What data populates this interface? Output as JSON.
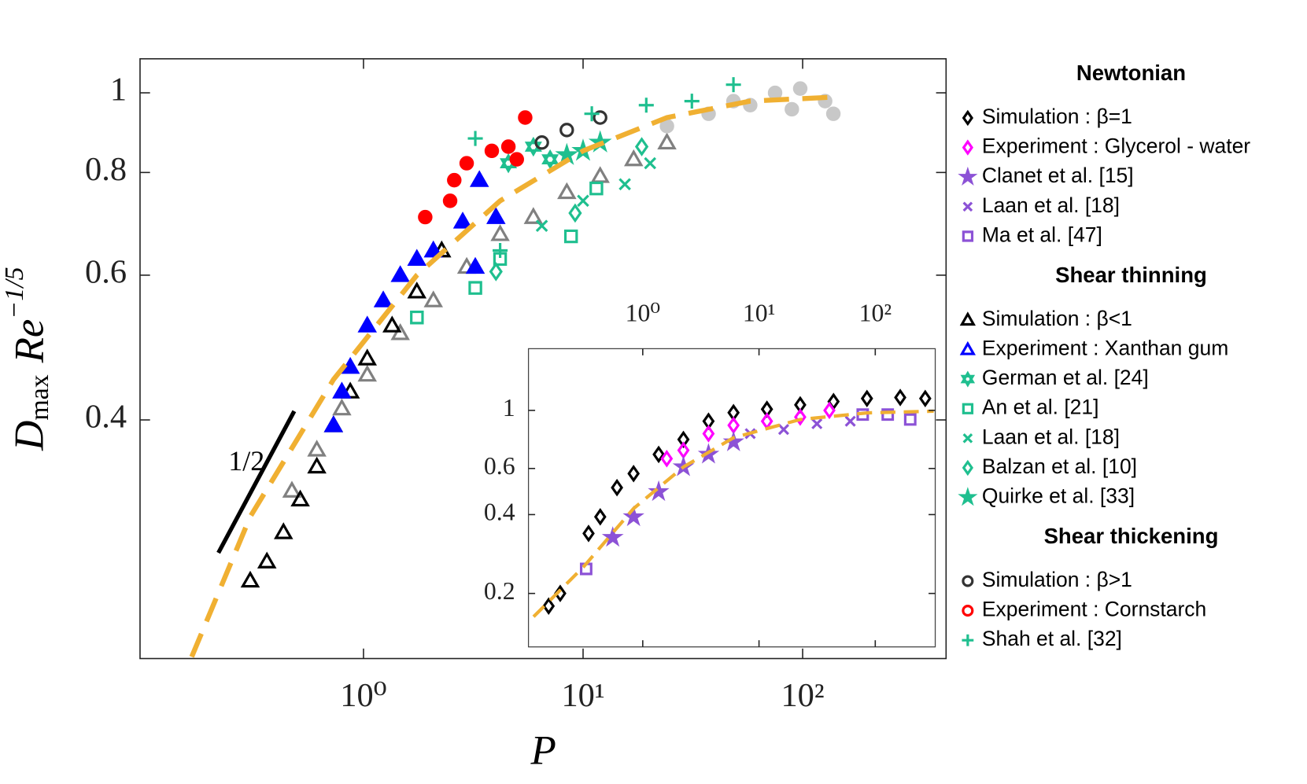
{
  "chart_data": [
    {
      "type": "scatter",
      "xlabel": "P",
      "ylabel": [
        "D",
        "max",
        "Re",
        "−1/5"
      ],
      "annotation": "1/2",
      "log_x": true,
      "log_y": true,
      "xlim": [
        0.096,
        450
      ],
      "ylim": [
        0.205,
        1.1
      ],
      "xticks": [
        {
          "value": 1,
          "label": "10⁰"
        },
        {
          "value": 10,
          "label": "10¹"
        },
        {
          "value": 100,
          "label": "10²"
        }
      ],
      "yticks": [
        1,
        0.8,
        0.6,
        0.4
      ],
      "legend_groups": [
        "Newtonian",
        "Shear thinning",
        "Shear thickening"
      ],
      "series": [
        {
          "color": "#808080",
          "marker": "triangle",
          "x": [
            0.472,
            0.613,
            0.797,
            1.04,
            1.47,
            2.08,
            2.95,
            4.19,
            5.94,
            8.43,
            11.96,
            17.0,
            24.1
          ],
          "values": [
            0.328,
            0.368,
            0.413,
            0.454,
            0.51,
            0.559,
            0.614,
            0.673,
            0.706,
            0.757,
            0.792,
            0.83,
            0.87
          ]
        },
        {
          "color": "#c8c8c8",
          "marker": "circle",
          "filled": true,
          "x": [
            24.1,
            37.3,
            57.7,
            74.9,
            97.5,
            126.6,
            138,
            89.3,
            48.4
          ],
          "values": [
            0.911,
            0.943,
            0.966,
            1.0,
            1.012,
            0.977,
            0.943,
            0.955,
            0.977
          ]
        },
        {
          "name": "Simulation : β<1",
          "group": 1,
          "color": "#000000",
          "marker": "triangle",
          "x": [
            0.305,
            0.363,
            0.432,
            0.515,
            0.613,
            0.73,
            0.87,
            1.04,
            1.35,
            1.75,
            2.27
          ],
          "values": [
            0.255,
            0.269,
            0.292,
            0.32,
            0.351,
            0.394,
            0.433,
            0.475,
            0.521,
            0.573,
            0.643
          ]
        },
        {
          "name": "Experiment : Xanthan gum",
          "group": 1,
          "color": "#0000ff",
          "marker": "triangle",
          "filled": true,
          "x": [
            0.73,
            0.797,
            0.87,
            1.04,
            1.23,
            1.47,
            1.75,
            2.08,
            2.83,
            3.37,
            4.01,
            3.23
          ],
          "values": [
            0.394,
            0.433,
            0.464,
            0.521,
            0.559,
            0.6,
            0.628,
            0.643,
            0.697,
            0.783,
            0.706,
            0.614
          ]
        },
        {
          "name": "German et al. [24]",
          "group": 1,
          "color": "#1fbf8f",
          "marker": "hexagram",
          "x": [
            4.57,
            5.94,
            7.08
          ],
          "values": [
            0.821,
            0.86,
            0.83
          ]
        },
        {
          "name": "An et al. [21]",
          "group": 1,
          "color": "#1fbf8f",
          "marker": "square",
          "x": [
            1.75,
            3.23,
            8.81,
            11.5,
            4.19
          ],
          "values": [
            0.533,
            0.579,
            0.669,
            0.765,
            0.628
          ]
        },
        {
          "name": "Laan et al. [18]",
          "group": 1,
          "color": "#1fbf8f",
          "marker": "x",
          "x": [
            6.49,
            10.0,
            15.5,
            20.2
          ],
          "values": [
            0.689,
            0.739,
            0.774,
            0.821
          ]
        },
        {
          "name": "Balzan et al. [10]",
          "group": 1,
          "color": "#1fbf8f",
          "marker": "diamond",
          "x": [
            4.01,
            9.2,
            18.5
          ],
          "values": [
            0.606,
            0.714,
            0.86
          ]
        },
        {
          "name": "Quirke et al. [33]",
          "group": 1,
          "color": "#1fbf8f",
          "marker": "star",
          "x": [
            8.43,
            10.0,
            11.96
          ],
          "values": [
            0.84,
            0.85,
            0.87
          ]
        },
        {
          "name": "Simulation : β>1",
          "group": 2,
          "color": "#333333",
          "marker": "circle",
          "x": [
            6.49,
            8.43,
            11.96
          ],
          "values": [
            0.87,
            0.901,
            0.933
          ]
        },
        {
          "name": "Experiment : Cornstarch",
          "group": 2,
          "color": "#ff0000",
          "marker": "circle",
          "filled": true,
          "x": [
            1.91,
            2.48,
            2.59,
            2.95,
            3.84,
            4.57,
            5.45,
            4.99
          ],
          "values": [
            0.706,
            0.739,
            0.783,
            0.821,
            0.85,
            0.86,
            0.933,
            0.83
          ]
        },
        {
          "name": "Shah et al. [32]",
          "group": 2,
          "color": "#1fbf8f",
          "marker": "plus",
          "x": [
            3.23,
            10.96,
            19.4,
            31.3,
            48.4,
            4.19
          ],
          "values": [
            0.88,
            0.943,
            0.966,
            0.977,
            1.023,
            0.643
          ]
        },
        {
          "color": "#f0b032",
          "marker": "line",
          "x": [
            0.165,
            0.305,
            0.73,
            1.75,
            4.19,
            10.0,
            24.1,
            57.7,
            138
          ],
          "values": [
            0.206,
            0.305,
            0.448,
            0.6,
            0.739,
            0.85,
            0.933,
            0.977,
            0.988
          ]
        }
      ]
    },
    {
      "type": "scatter",
      "log_x": true,
      "log_y": true,
      "xlim": [
        0.104,
        328
      ],
      "ylim": [
        0.125,
        1.72
      ],
      "xticks": [
        {
          "value": 1,
          "label": "10⁰"
        },
        {
          "value": 10,
          "label": "10¹"
        },
        {
          "value": 100,
          "label": "10²"
        }
      ],
      "yticks": [
        1,
        0.6,
        0.4,
        0.2
      ],
      "series": [
        {
          "name": "Simulation : β=1",
          "group": 0,
          "color": "#000000",
          "marker": "diamond",
          "x": [
            0.155,
            0.195,
            0.342,
            0.431,
            0.6,
            0.834,
            1.37,
            2.24,
            3.68,
            6.04,
            11.7,
            22.6,
            43.8,
            84.8,
            164,
            269
          ],
          "values": [
            0.179,
            0.2,
            0.339,
            0.392,
            0.507,
            0.574,
            0.679,
            0.774,
            0.909,
            0.98,
            1.01,
            1.05,
            1.08,
            1.11,
            1.12,
            1.11
          ]
        },
        {
          "name": "Experiment : Glycerol - water",
          "group": 0,
          "color": "#ff00ff",
          "marker": "diamond",
          "x": [
            1.61,
            2.24,
            3.68,
            6.04,
            11.7,
            22.6,
            40.3
          ],
          "values": [
            0.654,
            0.704,
            0.815,
            0.877,
            0.909,
            0.943,
            1.0
          ]
        },
        {
          "name": "Clanet et al. [15]",
          "group": 0,
          "color": "#8c52d6",
          "marker": "star",
          "x": [
            0.552,
            0.834,
            1.37,
            2.24,
            3.68,
            6.04
          ],
          "values": [
            0.327,
            0.392,
            0.489,
            0.608,
            0.679,
            0.757
          ]
        },
        {
          "name": "Laan et al. [18]",
          "group": 0,
          "color": "#8c52d6",
          "marker": "x",
          "x": [
            8.41,
            16.3,
            31.5,
            61
          ],
          "values": [
            0.815,
            0.845,
            0.889,
            0.909
          ]
        },
        {
          "name": "Ma et al. [47]",
          "group": 0,
          "color": "#8c52d6",
          "marker": "square",
          "x": [
            0.326,
            78,
            128,
            200
          ],
          "values": [
            0.248,
            0.964,
            0.964,
            0.923
          ]
        },
        {
          "color": "#f0b032",
          "marker": "line",
          "x": [
            0.115,
            0.31,
            0.834,
            2.24,
            6.04,
            22.6,
            84.8,
            318
          ],
          "values": [
            0.163,
            0.253,
            0.422,
            0.608,
            0.786,
            0.923,
            0.978,
            0.993
          ]
        }
      ]
    }
  ]
}
